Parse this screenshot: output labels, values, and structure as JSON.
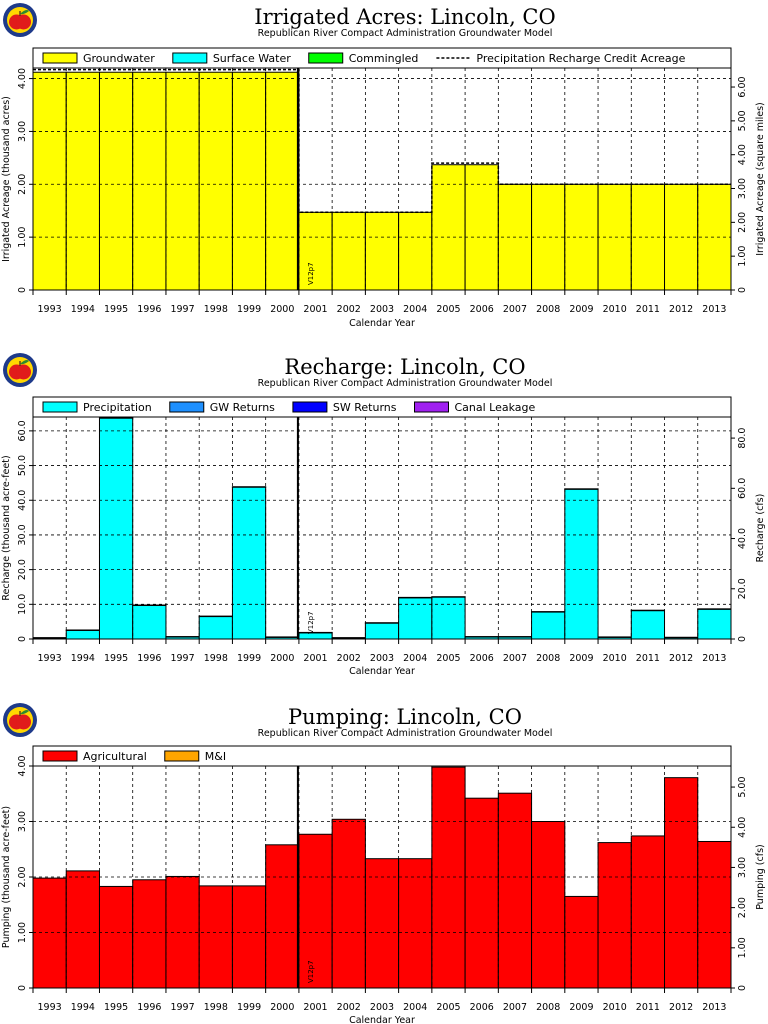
{
  "logo": {
    "icon": "apple-logo-icon",
    "colors": {
      "ring": "#1e3a8a",
      "apple": "#e11b1b",
      "leaf": "#2e8b2e"
    }
  },
  "years": [
    "1993",
    "1994",
    "1995",
    "1996",
    "1997",
    "1998",
    "1999",
    "2000",
    "2001",
    "2002",
    "2003",
    "2004",
    "2005",
    "2006",
    "2007",
    "2008",
    "2009",
    "2010",
    "2011",
    "2012",
    "2013"
  ],
  "marker_label": "V12p7",
  "chart_data": [
    {
      "type": "bar",
      "title": "Irrigated  Acres:  Lincoln,  CO",
      "subtitle": "Republican  River  Compact  Administration  Groundwater  Model",
      "xlabel": "Calendar  Year",
      "ylabel": "Irrigated  Acreage  (thousand  acres)",
      "ylabel_right": "Irrigated  Acreage  (square  miles)",
      "ylim": [
        0,
        4.2
      ],
      "yticks": [
        "0",
        "1.00",
        "2.00",
        "3.00",
        "4.00"
      ],
      "ytick_values": [
        0,
        1,
        2,
        3,
        4
      ],
      "ylim_right": [
        0,
        6.5625
      ],
      "yticks_right": [
        "0",
        "1.00",
        "2.00",
        "3.00",
        "4.00",
        "5.00",
        "6.00"
      ],
      "ytick_right_values": [
        0,
        1,
        2,
        3,
        4,
        5,
        6
      ],
      "legend": {
        "placement": "top"
      },
      "series": [
        {
          "name": "Groundwater",
          "color": "#ffff00",
          "values": [
            4.12,
            4.12,
            4.12,
            4.12,
            4.12,
            4.12,
            4.12,
            4.12,
            1.47,
            1.47,
            1.47,
            1.47,
            2.37,
            2.37,
            2.0,
            2.0,
            2.0,
            2.0,
            2.0,
            2.0,
            2.0
          ]
        },
        {
          "name": "Surface  Water",
          "color": "#00ffff",
          "values": [
            0,
            0,
            0,
            0,
            0,
            0,
            0,
            0,
            0,
            0,
            0,
            0,
            0,
            0,
            0,
            0,
            0,
            0,
            0,
            0,
            0
          ]
        },
        {
          "name": "Commingled",
          "color": "#00ff00",
          "values": [
            0,
            0,
            0,
            0,
            0,
            0,
            0,
            0,
            0,
            0,
            0,
            0,
            0,
            0,
            0,
            0,
            0,
            0,
            0,
            0,
            0
          ]
        }
      ],
      "line_series": {
        "name": "Precipitation  Recharge  Credit  Acreage",
        "values": [
          4.17,
          4.17,
          4.17,
          4.17,
          4.17,
          4.17,
          4.17,
          4.17,
          1.47,
          1.47,
          1.47,
          1.47,
          2.4,
          2.4,
          2.0,
          2.0,
          2.0,
          2.0,
          2.0,
          2.0,
          2.0
        ]
      }
    },
    {
      "type": "bar",
      "title": "Recharge:  Lincoln,  CO",
      "subtitle": "Republican  River  Compact  Administration  Groundwater  Model",
      "xlabel": "Calendar  Year",
      "ylabel": "Recharge  (thousand  acre-feet)",
      "ylabel_right": "Recharge  (cfs)",
      "ylim": [
        0,
        64
      ],
      "yticks": [
        "0",
        "10.0",
        "20.0",
        "30.0",
        "40.0",
        "50.0",
        "60.0"
      ],
      "ytick_values": [
        0,
        10,
        20,
        30,
        40,
        50,
        60
      ],
      "ylim_right": [
        0,
        88.4
      ],
      "yticks_right": [
        "0",
        "20.0",
        "40.0",
        "60.0",
        "80.0"
      ],
      "ytick_right_values": [
        0,
        20,
        40,
        60,
        80
      ],
      "legend": {
        "placement": "top"
      },
      "series": [
        {
          "name": "Precipitation",
          "color": "#00ffff",
          "values": [
            0.3,
            2.5,
            63.7,
            9.7,
            0.6,
            6.5,
            43.8,
            0.5,
            1.8,
            0.3,
            4.6,
            11.9,
            12.1,
            0.6,
            0.6,
            7.8,
            43.2,
            0.5,
            8.2,
            0.4,
            8.6
          ]
        },
        {
          "name": "GW  Returns",
          "color": "#1e90ff",
          "values": [
            0.1,
            0.1,
            0.1,
            0.1,
            0.1,
            0.1,
            0.1,
            0.1,
            0.1,
            0.1,
            0.1,
            0.1,
            0.1,
            0.1,
            0.1,
            0.1,
            0.1,
            0.1,
            0.1,
            0.1,
            0.1
          ]
        },
        {
          "name": "SW  Returns",
          "color": "#0000ff",
          "values": [
            0,
            0,
            0,
            0,
            0,
            0,
            0,
            0,
            0,
            0,
            0,
            0,
            0,
            0,
            0,
            0,
            0,
            0,
            0,
            0,
            0
          ]
        },
        {
          "name": "Canal  Leakage",
          "color": "#a020f0",
          "values": [
            0,
            0,
            0,
            0,
            0,
            0,
            0,
            0,
            0,
            0,
            0,
            0,
            0,
            0,
            0,
            0,
            0,
            0,
            0,
            0,
            0
          ]
        }
      ]
    },
    {
      "type": "bar",
      "title": "Pumping:  Lincoln,  CO",
      "subtitle": "Republican  River  Compact  Administration  Groundwater  Model",
      "xlabel": "Calendar  Year",
      "ylabel": "Pumping  (thousand  acre-feet)",
      "ylabel_right": "Pumping  (cfs)",
      "ylim": [
        0,
        4.0
      ],
      "yticks": [
        "0",
        "1.00",
        "2.00",
        "3.00",
        "4.00"
      ],
      "ytick_values": [
        0,
        1,
        2,
        3,
        4
      ],
      "ylim_right": [
        0,
        5.524
      ],
      "yticks_right": [
        "0",
        "1.00",
        "2.00",
        "3.00",
        "4.00",
        "5.00"
      ],
      "ytick_right_values": [
        0,
        1,
        2,
        3,
        4,
        5
      ],
      "legend": {
        "placement": "top"
      },
      "series": [
        {
          "name": "Agricultural",
          "color": "#ff0000",
          "values": [
            1.98,
            2.11,
            1.83,
            1.95,
            2.01,
            1.84,
            1.84,
            2.58,
            2.77,
            3.04,
            2.33,
            2.33,
            3.98,
            3.42,
            3.51,
            3.0,
            1.65,
            2.62,
            2.74,
            3.79,
            2.64
          ]
        },
        {
          "name": "M&I",
          "color": "#ffa500",
          "values": [
            0,
            0,
            0,
            0,
            0,
            0,
            0,
            0,
            0,
            0,
            0,
            0,
            0,
            0,
            0,
            0,
            0,
            0,
            0,
            0,
            0
          ]
        }
      ]
    }
  ]
}
